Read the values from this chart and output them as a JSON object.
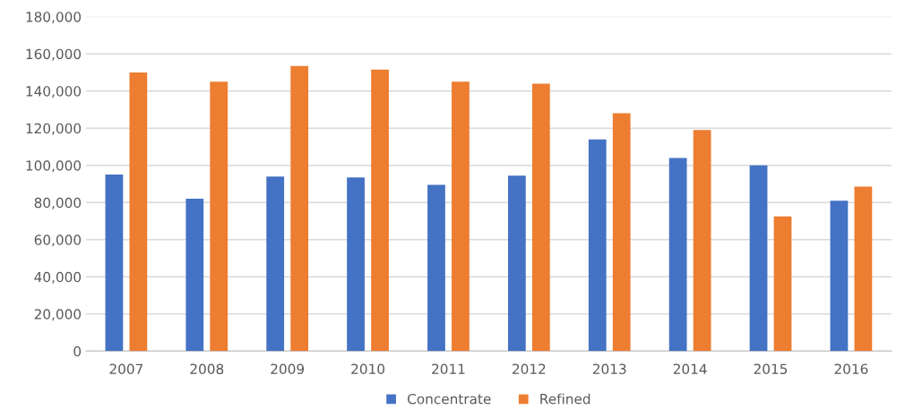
{
  "chart_data": {
    "type": "bar",
    "categories": [
      "2007",
      "2008",
      "2009",
      "2010",
      "2011",
      "2012",
      "2013",
      "2014",
      "2015",
      "2016"
    ],
    "series": [
      {
        "name": "Concentrate",
        "color": "#4472c4",
        "values": [
          95000,
          82000,
          94000,
          93500,
          89500,
          94500,
          114000,
          104000,
          100000,
          81000
        ]
      },
      {
        "name": "Refined",
        "color": "#ed7d31",
        "values": [
          150000,
          145000,
          153500,
          151500,
          145000,
          144000,
          128000,
          119000,
          72500,
          88500
        ]
      }
    ],
    "ylim": [
      0,
      180000
    ],
    "yticks": [
      {
        "value": 0,
        "label": "0"
      },
      {
        "value": 20000,
        "label": "20,000"
      },
      {
        "value": 40000,
        "label": "40,000"
      },
      {
        "value": 60000,
        "label": "60,000"
      },
      {
        "value": 80000,
        "label": "80,000"
      },
      {
        "value": 100000,
        "label": "100,000"
      },
      {
        "value": 120000,
        "label": "120,000"
      },
      {
        "value": 140000,
        "label": "140,000"
      },
      {
        "value": 160000,
        "label": "160,000"
      },
      {
        "value": 180000,
        "label": "180,000"
      }
    ],
    "grid": "y",
    "legend": "bottom"
  }
}
